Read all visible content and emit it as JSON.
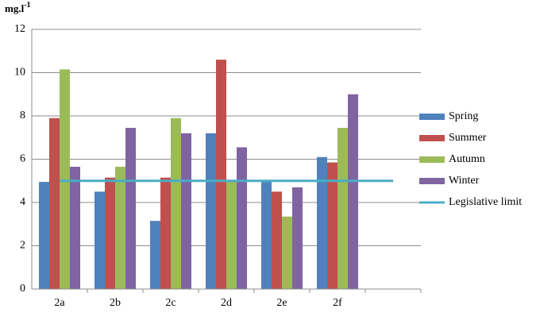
{
  "chart_data": {
    "type": "bar",
    "y_label": {
      "base": "mg.l",
      "exponent": "-1"
    },
    "categories": [
      "2a",
      "2b",
      "2c",
      "2d",
      "2e",
      "2f",
      null
    ],
    "series": [
      {
        "name": "Spring",
        "type": "bar",
        "color": "#4f81bd",
        "values": [
          4.95,
          4.5,
          3.15,
          7.2,
          4.95,
          6.1,
          null
        ]
      },
      {
        "name": "Summer",
        "type": "bar",
        "color": "#c0504d",
        "values": [
          7.9,
          5.15,
          5.15,
          10.6,
          4.5,
          5.85,
          null
        ]
      },
      {
        "name": "Autumn",
        "type": "bar",
        "color": "#9bbb59",
        "values": [
          10.15,
          5.65,
          7.9,
          5.0,
          3.35,
          7.45,
          null
        ]
      },
      {
        "name": "Winter",
        "type": "bar",
        "color": "#8064a2",
        "values": [
          5.65,
          7.45,
          7.2,
          6.55,
          4.7,
          9.0,
          null
        ]
      },
      {
        "name": "Legislative limit",
        "type": "line",
        "color": "#4bacc6",
        "values": [
          5,
          5,
          5,
          5,
          5,
          5,
          5
        ]
      }
    ],
    "ylim": [
      0,
      12
    ],
    "yticks": [
      0,
      2,
      4,
      6,
      8,
      10,
      12
    ],
    "grid": true,
    "legend": "right"
  }
}
